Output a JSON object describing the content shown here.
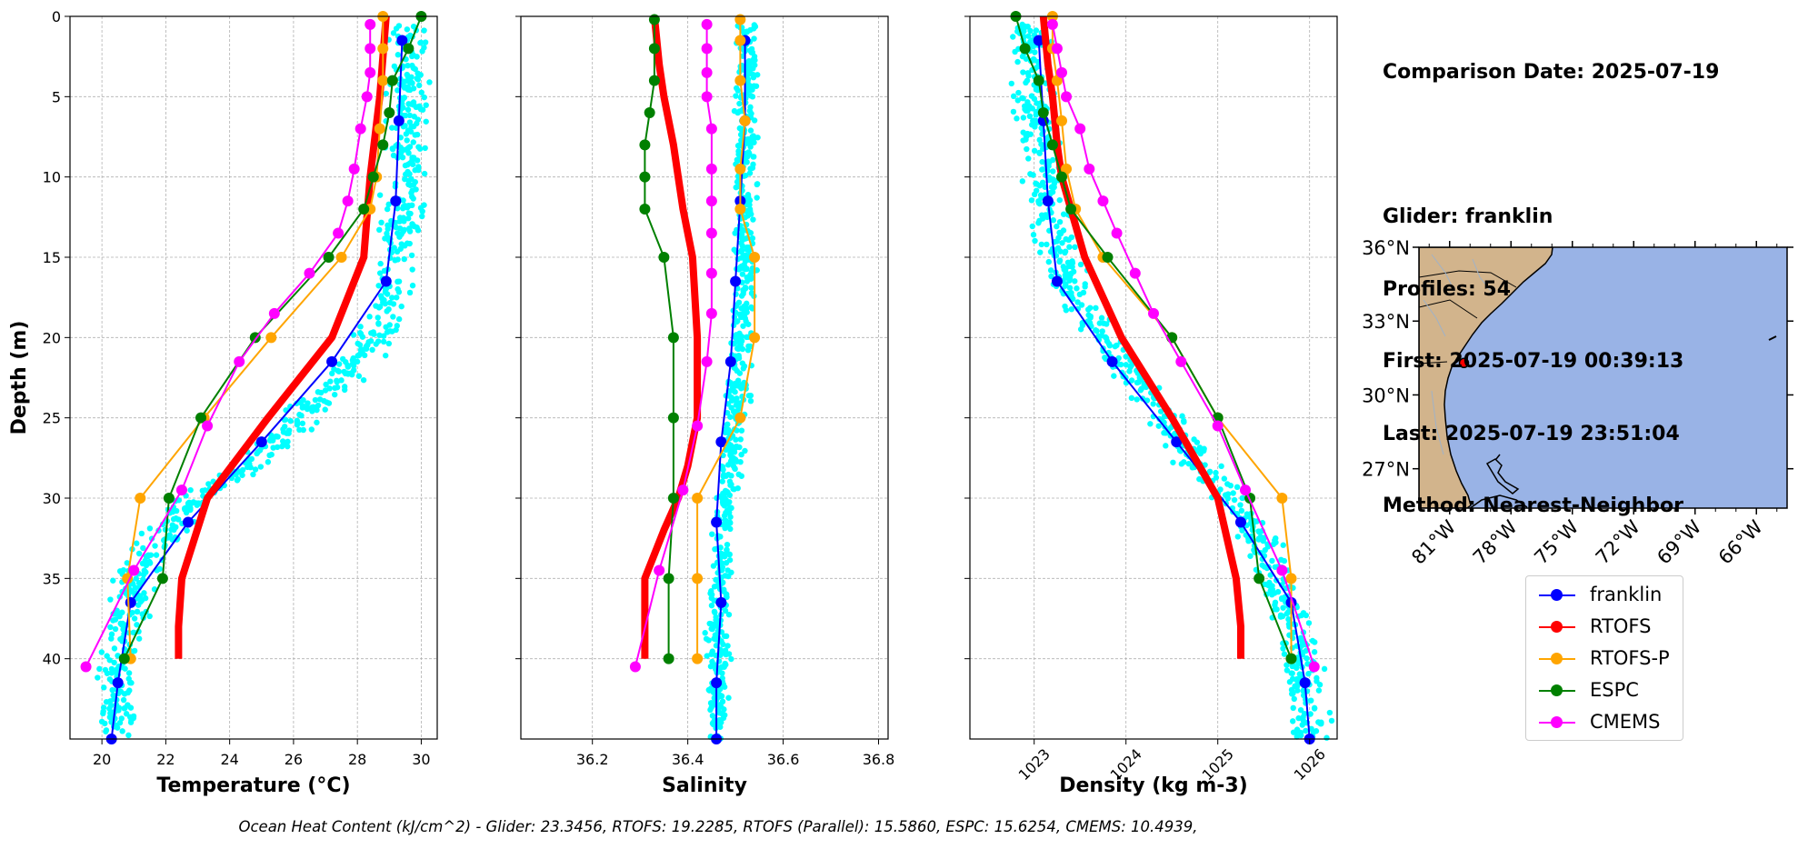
{
  "info": {
    "comparison_date": "Comparison Date: 2025-07-19",
    "glider": "Glider: franklin",
    "profiles": "Profiles: 54",
    "first": "First: 2025-07-19 00:39:13",
    "last": "Last: 2025-07-19 23:51:04",
    "method": "Method: Nearest-Neighbor"
  },
  "footer": "Ocean Heat Content (kJ/cm^2) - Glider: 23.3456,  RTOFS: 19.2285,  RTOFS (Parallel): 15.5860,  ESPC: 15.6254,  CMEMS: 10.4939,",
  "legend": [
    {
      "name": "franklin",
      "color": "#0000ff"
    },
    {
      "name": "RTOFS",
      "color": "#ff0000"
    },
    {
      "name": "RTOFS-P",
      "color": "#ffa500"
    },
    {
      "name": "ESPC",
      "color": "#008000"
    },
    {
      "name": "CMEMS",
      "color": "#ff00ff"
    }
  ],
  "colors": {
    "glider_points": "#00ffff",
    "land": "#d2b48c",
    "ocean": "#99b3e6"
  },
  "chart_data": [
    {
      "type": "line",
      "xlabel": "Temperature (°C)",
      "ylabel": "Depth (m)",
      "xlim": [
        19.0,
        30.5
      ],
      "ylim": [
        45,
        0
      ],
      "xticks": [
        20,
        22,
        24,
        26,
        28,
        30
      ],
      "yticks": [
        0,
        5,
        10,
        15,
        20,
        25,
        30,
        35,
        40
      ],
      "grid": true,
      "raw_profile_cloud": {
        "name": "franklin",
        "color": "#00ffff",
        "center": [
          [
            3,
            29.6
          ],
          [
            10,
            29.5
          ],
          [
            15,
            29.2
          ],
          [
            18,
            29.0
          ],
          [
            20,
            28.5
          ],
          [
            22,
            27.8
          ],
          [
            25,
            26.3
          ],
          [
            28,
            24.5
          ],
          [
            30,
            23.0
          ],
          [
            32,
            22.0
          ],
          [
            34,
            21.3
          ],
          [
            36,
            20.9
          ],
          [
            40,
            20.6
          ],
          [
            44,
            20.4
          ]
        ],
        "spread": 0.9
      },
      "series": [
        {
          "name": "franklin",
          "depth": [
            1.5,
            6.5,
            11.5,
            16.5,
            21.5,
            26.5,
            31.5,
            36.5,
            41.5,
            45
          ],
          "values": [
            29.4,
            29.3,
            29.2,
            28.9,
            27.2,
            25.0,
            22.7,
            20.9,
            20.5,
            20.3
          ]
        },
        {
          "name": "RTOFS",
          "depth": [
            0,
            5,
            10,
            15,
            20,
            25,
            30,
            35,
            38,
            40
          ],
          "values": [
            28.9,
            28.7,
            28.4,
            28.2,
            27.2,
            25.2,
            23.3,
            22.5,
            22.4,
            22.4
          ]
        },
        {
          "name": "RTOFS-P",
          "depth": [
            0,
            2,
            4,
            7,
            10,
            12,
            15,
            20,
            25,
            30,
            35,
            40
          ],
          "values": [
            28.8,
            28.8,
            28.8,
            28.7,
            28.6,
            28.4,
            27.5,
            25.3,
            23.2,
            21.2,
            20.8,
            20.9
          ]
        },
        {
          "name": "ESPC",
          "depth": [
            0,
            2,
            4,
            6,
            8,
            10,
            12,
            15,
            20,
            25,
            30,
            35,
            40
          ],
          "values": [
            30.0,
            29.6,
            29.1,
            29.0,
            28.8,
            28.5,
            28.2,
            27.1,
            24.8,
            23.1,
            22.1,
            21.9,
            20.7
          ]
        },
        {
          "name": "CMEMS",
          "depth": [
            0.5,
            2,
            3.5,
            5,
            7,
            9.5,
            11.5,
            13.5,
            16,
            18.5,
            21.5,
            25.5,
            29.5,
            34.5,
            40.5
          ],
          "values": [
            28.4,
            28.4,
            28.4,
            28.3,
            28.1,
            27.9,
            27.7,
            27.4,
            26.5,
            25.4,
            24.3,
            23.3,
            22.5,
            21.0,
            19.5
          ]
        }
      ]
    },
    {
      "type": "line",
      "xlabel": "Salinity",
      "ylabel": "",
      "xlim": [
        36.05,
        36.82
      ],
      "ylim": [
        45,
        0
      ],
      "xticks": [
        36.2,
        36.4,
        36.6,
        36.8
      ],
      "grid": true,
      "raw_profile_cloud": {
        "name": "franklin",
        "color": "#00ffff",
        "center": [
          [
            3,
            36.525
          ],
          [
            10,
            36.52
          ],
          [
            15,
            36.52
          ],
          [
            18,
            36.515
          ],
          [
            20,
            36.51
          ],
          [
            22,
            36.505
          ],
          [
            25,
            36.5
          ],
          [
            28,
            36.49
          ],
          [
            30,
            36.48
          ],
          [
            32,
            36.475
          ],
          [
            35,
            36.47
          ],
          [
            40,
            36.465
          ],
          [
            44,
            36.46
          ]
        ],
        "spread": 0.035
      },
      "series": [
        {
          "name": "franklin",
          "depth": [
            1.5,
            6.5,
            11.5,
            16.5,
            21.5,
            26.5,
            31.5,
            36.5,
            41.5,
            45
          ],
          "values": [
            36.52,
            36.52,
            36.51,
            36.5,
            36.49,
            36.47,
            36.46,
            36.47,
            36.46,
            36.46
          ]
        },
        {
          "name": "RTOFS",
          "depth": [
            0,
            3,
            5,
            8,
            10,
            12,
            15,
            20,
            25,
            28,
            30,
            32,
            35,
            40
          ],
          "values": [
            36.33,
            36.34,
            36.35,
            36.37,
            36.38,
            36.39,
            36.41,
            36.42,
            36.42,
            36.4,
            36.38,
            36.35,
            36.31,
            36.31
          ]
        },
        {
          "name": "RTOFS-P",
          "depth": [
            0.2,
            1.5,
            4,
            6.5,
            9.5,
            12,
            15,
            20,
            25,
            30,
            35,
            40
          ],
          "values": [
            36.51,
            36.51,
            36.51,
            36.52,
            36.51,
            36.51,
            36.54,
            36.54,
            36.51,
            36.42,
            36.42,
            36.42
          ]
        },
        {
          "name": "ESPC",
          "depth": [
            0.2,
            2,
            4,
            6,
            8,
            10,
            12,
            15,
            20,
            25,
            30,
            35,
            40
          ],
          "values": [
            36.33,
            36.33,
            36.33,
            36.32,
            36.31,
            36.31,
            36.31,
            36.35,
            36.37,
            36.37,
            36.37,
            36.36,
            36.36
          ]
        },
        {
          "name": "CMEMS",
          "depth": [
            0.5,
            2,
            3.5,
            5,
            7,
            9.5,
            11.5,
            13.5,
            16,
            18.5,
            21.5,
            25.5,
            29.5,
            34.5,
            40.5
          ],
          "values": [
            36.44,
            36.44,
            36.44,
            36.44,
            36.45,
            36.45,
            36.45,
            36.45,
            36.45,
            36.45,
            36.44,
            36.42,
            36.39,
            36.34,
            36.29
          ]
        }
      ]
    },
    {
      "type": "line",
      "xlabel": "Density (kg m-3)",
      "ylabel": "",
      "xlim": [
        1022.3,
        1026.3
      ],
      "ylim": [
        45,
        0
      ],
      "xticks": [
        1023,
        1024,
        1025,
        1026
      ],
      "xtick_rotation": 45,
      "grid": true,
      "raw_profile_cloud": {
        "name": "franklin",
        "color": "#00ffff",
        "center": [
          [
            3,
            1022.95
          ],
          [
            10,
            1023.1
          ],
          [
            15,
            1023.25
          ],
          [
            18,
            1023.5
          ],
          [
            20,
            1023.75
          ],
          [
            22,
            1024.0
          ],
          [
            25,
            1024.45
          ],
          [
            28,
            1024.8
          ],
          [
            30,
            1025.1
          ],
          [
            32,
            1025.4
          ],
          [
            35,
            1025.65
          ],
          [
            38,
            1025.85
          ],
          [
            44,
            1026.0
          ]
        ],
        "spread": 0.3
      },
      "series": [
        {
          "name": "franklin",
          "depth": [
            1.5,
            6.5,
            11.5,
            16.5,
            21.5,
            26.5,
            31.5,
            36.5,
            41.5,
            45
          ],
          "values": [
            1023.05,
            1023.1,
            1023.15,
            1023.25,
            1023.85,
            1024.55,
            1025.25,
            1025.8,
            1025.95,
            1026.0
          ]
        },
        {
          "name": "RTOFS",
          "depth": [
            0,
            3,
            5,
            8,
            10,
            12,
            15,
            20,
            25,
            30,
            35,
            38,
            40
          ],
          "values": [
            1023.1,
            1023.15,
            1023.2,
            1023.25,
            1023.3,
            1023.4,
            1023.55,
            1023.95,
            1024.5,
            1025.0,
            1025.2,
            1025.25,
            1025.25
          ]
        },
        {
          "name": "RTOFS-P",
          "depth": [
            0,
            2,
            4,
            6.5,
            9.5,
            12,
            15,
            20,
            25,
            30,
            35,
            40
          ],
          "values": [
            1023.2,
            1023.2,
            1023.25,
            1023.3,
            1023.35,
            1023.45,
            1023.75,
            1024.5,
            1025.0,
            1025.7,
            1025.8,
            1025.8
          ]
        },
        {
          "name": "ESPC",
          "depth": [
            0,
            2,
            4,
            6,
            8,
            10,
            12,
            15,
            20,
            25,
            30,
            35,
            40
          ],
          "values": [
            1022.8,
            1022.9,
            1023.05,
            1023.1,
            1023.2,
            1023.3,
            1023.4,
            1023.8,
            1024.5,
            1025.0,
            1025.35,
            1025.45,
            1025.8
          ]
        },
        {
          "name": "CMEMS",
          "depth": [
            0.5,
            2,
            3.5,
            5,
            7,
            9.5,
            11.5,
            13.5,
            16,
            18.5,
            21.5,
            25.5,
            29.5,
            34.5,
            40.5
          ],
          "values": [
            1023.2,
            1023.25,
            1023.3,
            1023.35,
            1023.5,
            1023.6,
            1023.75,
            1023.9,
            1024.1,
            1024.3,
            1024.6,
            1025.0,
            1025.3,
            1025.7,
            1026.05
          ]
        }
      ]
    }
  ],
  "map": {
    "lat_ticks": [
      "36°N",
      "33°N",
      "30°N",
      "27°N"
    ],
    "lon_ticks": [
      "81°W",
      "78°W",
      "75°W",
      "72°W",
      "69°W",
      "66°W"
    ],
    "lat_values": [
      36,
      33,
      30,
      27
    ],
    "lon_values": [
      -81,
      -78,
      -75,
      -72,
      -69,
      -66
    ],
    "extent": {
      "lon": [
        -82.5,
        -64.5
      ],
      "lat": [
        25.4,
        36
      ]
    },
    "glider_location": {
      "lon": -80.3,
      "lat": 31.3
    }
  }
}
